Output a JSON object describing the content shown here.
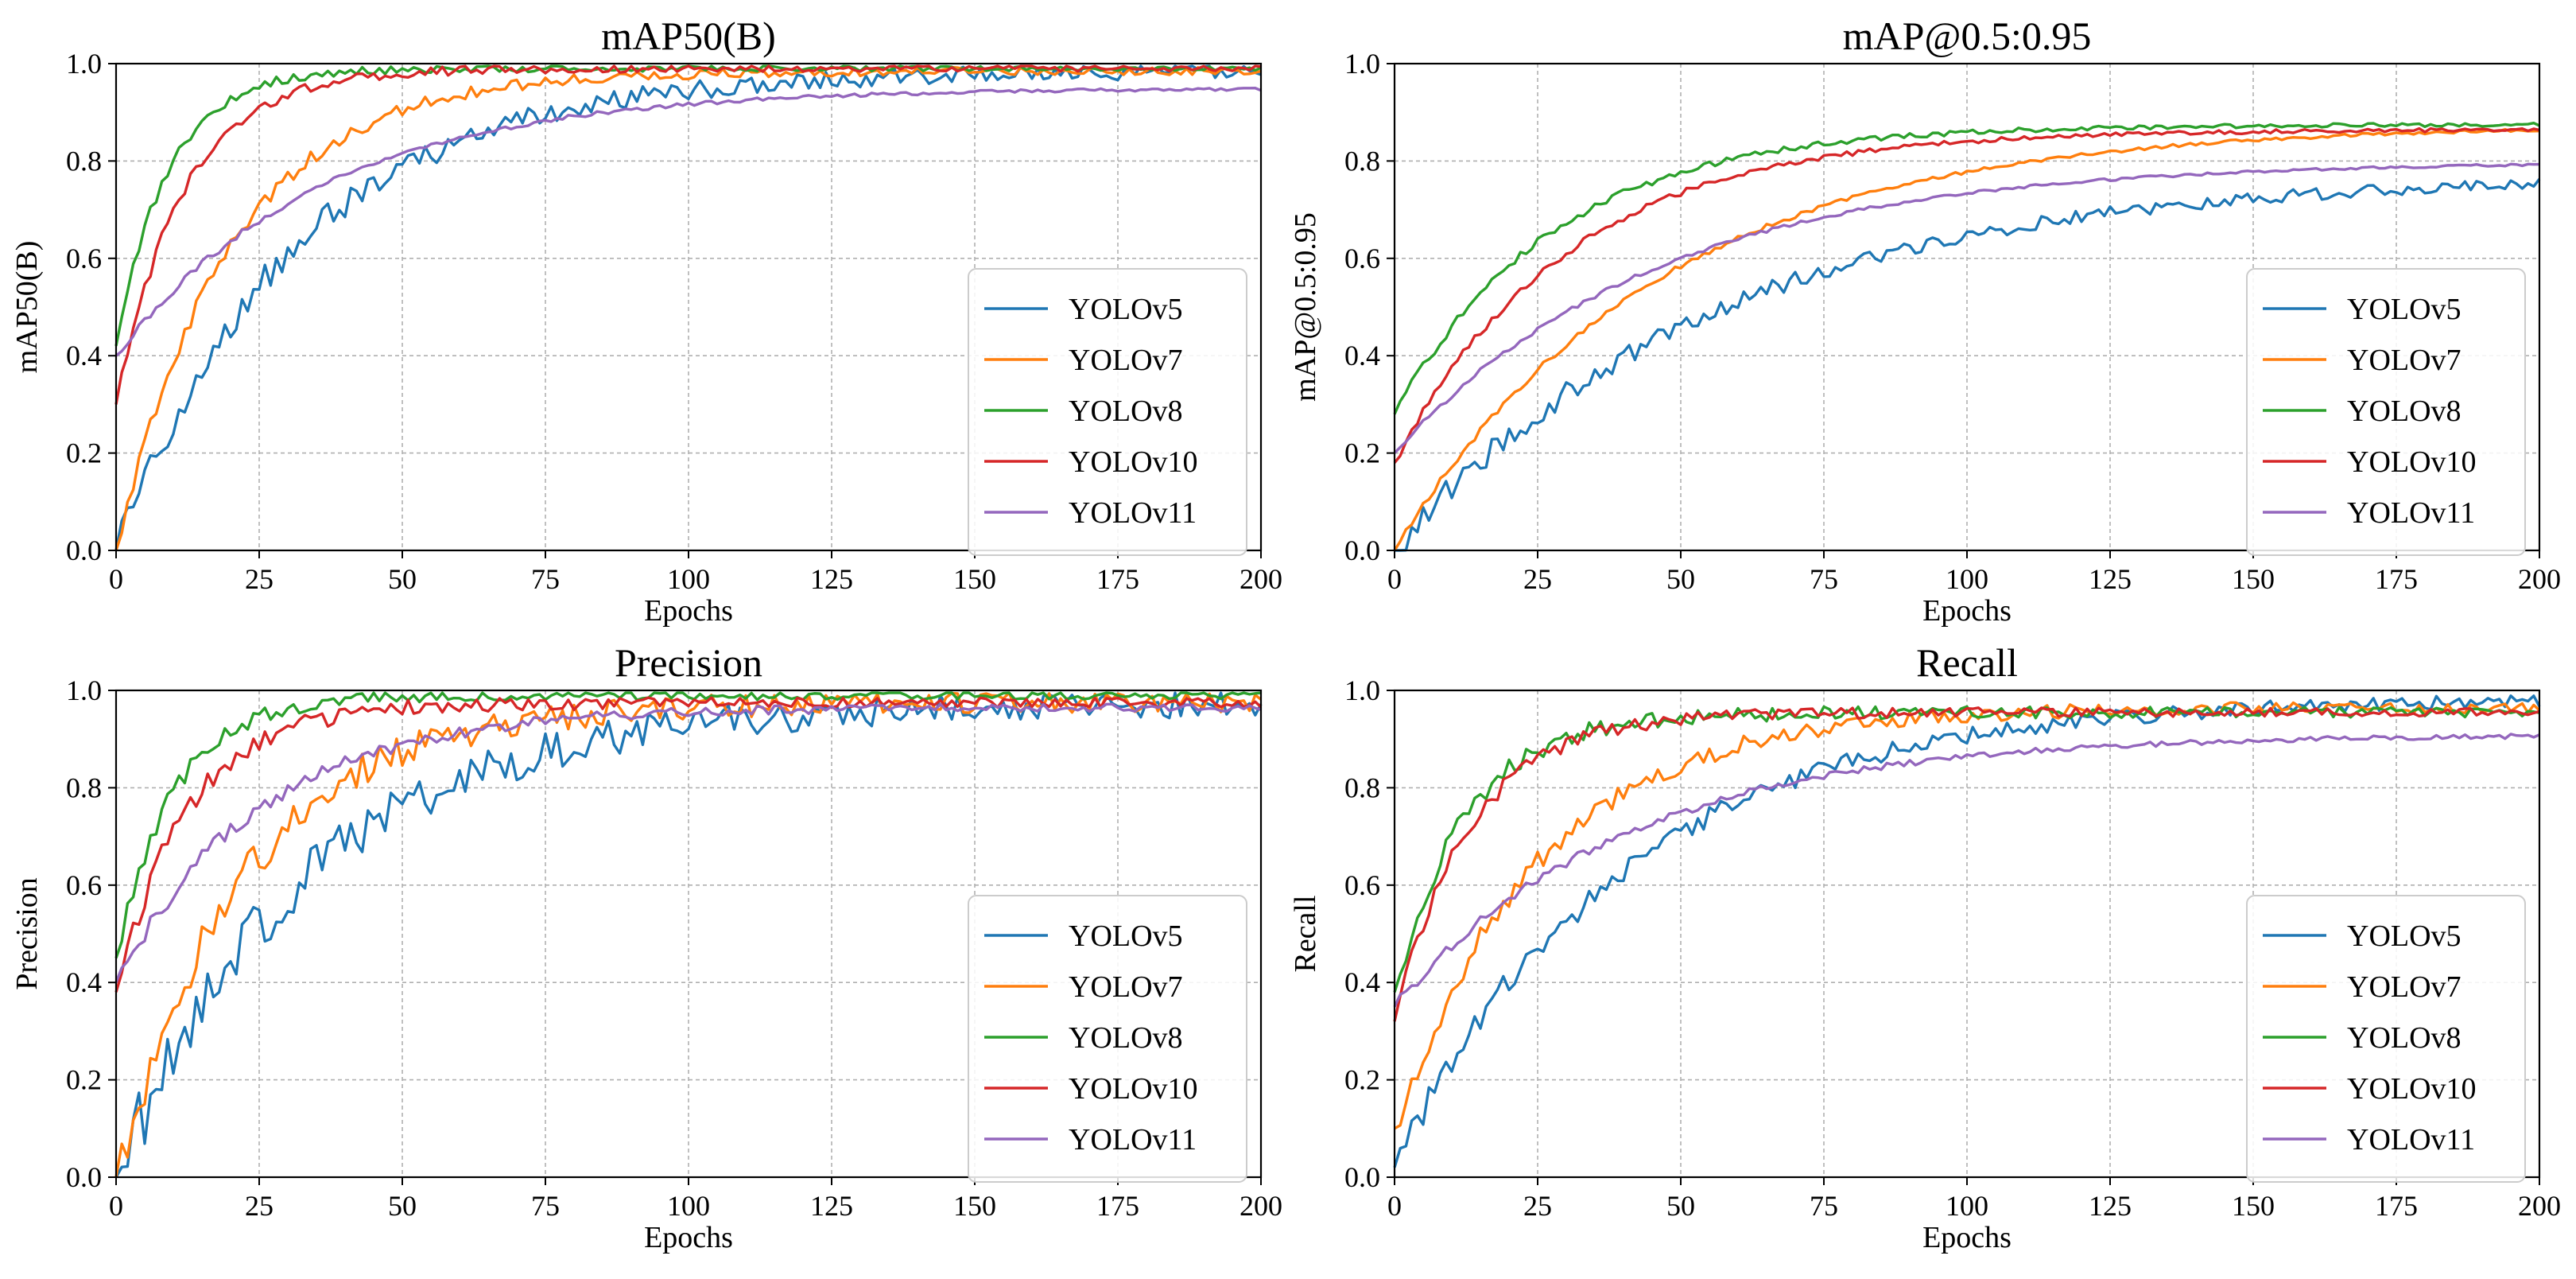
{
  "figure": {
    "xlabel": "Epochs",
    "xticks": [
      0,
      25,
      50,
      75,
      100,
      125,
      150,
      175,
      200
    ],
    "yticks": [
      0.0,
      0.2,
      0.4,
      0.6,
      0.8,
      1.0
    ],
    "ytick_labels": [
      "0.0",
      "0.2",
      "0.4",
      "0.6",
      "0.8",
      "1.0"
    ],
    "legend_labels": [
      "YOLOv5",
      "YOLOv7",
      "YOLOv8",
      "YOLOv10",
      "YOLOv11"
    ],
    "series_colors": {
      "YOLOv5": "#1f77b4",
      "YOLOv7": "#ff7f0e",
      "YOLOv8": "#2ca02c",
      "YOLOv10": "#d62728",
      "YOLOv11": "#9467bd"
    }
  },
  "chart_data": [
    {
      "type": "line",
      "title": "mAP50(B)",
      "xlabel": "Epochs",
      "ylabel": "mAP50(B)",
      "xlim": [
        0,
        200
      ],
      "ylim": [
        0,
        1
      ],
      "grid": true,
      "legend_position": "center-right",
      "series": [
        {
          "name": "YOLOv5",
          "start": 0.0,
          "end": 0.985,
          "k": 0.032,
          "noise": 0.04
        },
        {
          "name": "YOLOv7",
          "start": 0.0,
          "end": 0.985,
          "k": 0.05,
          "noise": 0.02
        },
        {
          "name": "YOLOv8",
          "start": 0.42,
          "end": 0.99,
          "k": 0.11,
          "noise": 0.012
        },
        {
          "name": "YOLOv10",
          "start": 0.3,
          "end": 0.99,
          "k": 0.085,
          "noise": 0.015
        },
        {
          "name": "YOLOv11",
          "start": 0.4,
          "end": 0.95,
          "k": 0.028,
          "noise": 0.008
        }
      ]
    },
    {
      "type": "line",
      "title": "mAP@0.5:0.95",
      "xlabel": "Epochs",
      "ylabel": "mAP@0.5:0.95",
      "xlim": [
        0,
        200
      ],
      "ylim": [
        0,
        1
      ],
      "grid": true,
      "legend_position": "center-right",
      "series": [
        {
          "name": "YOLOv5",
          "start": 0.0,
          "end": 0.775,
          "k": 0.018,
          "noise": 0.03
        },
        {
          "name": "YOLOv7",
          "start": 0.0,
          "end": 0.875,
          "k": 0.022,
          "noise": 0.008
        },
        {
          "name": "YOLOv8",
          "start": 0.28,
          "end": 0.875,
          "k": 0.036,
          "noise": 0.01
        },
        {
          "name": "YOLOv10",
          "start": 0.18,
          "end": 0.865,
          "k": 0.033,
          "noise": 0.01
        },
        {
          "name": "YOLOv11",
          "start": 0.2,
          "end": 0.8,
          "k": 0.022,
          "noise": 0.006
        }
      ]
    },
    {
      "type": "line",
      "title": "Precision",
      "xlabel": "Epochs",
      "ylabel": "Precision",
      "xlim": [
        0,
        200
      ],
      "ylim": [
        0,
        1
      ],
      "grid": true,
      "legend_position": "center-right",
      "series": [
        {
          "name": "YOLOv5",
          "start": 0.0,
          "end": 0.975,
          "k": 0.03,
          "noise": 0.07
        },
        {
          "name": "YOLOv7",
          "start": 0.0,
          "end": 0.975,
          "k": 0.045,
          "noise": 0.05
        },
        {
          "name": "YOLOv8",
          "start": 0.45,
          "end": 0.99,
          "k": 0.1,
          "noise": 0.02
        },
        {
          "name": "YOLOv10",
          "start": 0.38,
          "end": 0.975,
          "k": 0.08,
          "noise": 0.025
        },
        {
          "name": "YOLOv11",
          "start": 0.4,
          "end": 0.965,
          "k": 0.04,
          "noise": 0.02
        }
      ]
    },
    {
      "type": "line",
      "title": "Recall",
      "xlabel": "Epochs",
      "ylabel": "Recall",
      "xlim": [
        0,
        200
      ],
      "ylim": [
        0,
        1
      ],
      "grid": true,
      "legend_position": "center-right",
      "series": [
        {
          "name": "YOLOv5",
          "start": 0.02,
          "end": 0.985,
          "k": 0.025,
          "noise": 0.035
        },
        {
          "name": "YOLOv7",
          "start": 0.1,
          "end": 0.965,
          "k": 0.04,
          "noise": 0.03
        },
        {
          "name": "YOLOv8",
          "start": 0.38,
          "end": 0.955,
          "k": 0.08,
          "noise": 0.025
        },
        {
          "name": "YOLOv10",
          "start": 0.32,
          "end": 0.955,
          "k": 0.075,
          "noise": 0.02
        },
        {
          "name": "YOLOv11",
          "start": 0.35,
          "end": 0.91,
          "k": 0.025,
          "noise": 0.012
        }
      ]
    }
  ]
}
